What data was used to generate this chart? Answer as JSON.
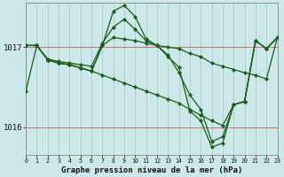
{
  "title": "Graphe pression niveau de la mer (hPa)",
  "bg_color": "#cce8e8",
  "grid_color": "#aacccc",
  "line_color": "#1a5c1a",
  "xlim": [
    0,
    23
  ],
  "ylim": [
    1015.65,
    1017.55
  ],
  "yticks": [
    1016.0,
    1017.0
  ],
  "figsize": [
    3.2,
    2.0
  ],
  "series": [
    [
      1016.45,
      1017.02,
      1016.85,
      1016.82,
      1016.8,
      1016.78,
      1016.76,
      1017.05,
      1017.25,
      1017.35,
      1017.22,
      1017.08,
      1017.02,
      1016.9,
      1016.68,
      1016.4,
      1016.22,
      1015.82,
      1015.88,
      1016.28,
      1016.32,
      1017.08,
      1016.98,
      1017.12
    ],
    [
      1017.02,
      1017.02,
      1016.84,
      1016.8,
      1016.78,
      1016.74,
      1016.7,
      1017.02,
      1017.12,
      1017.1,
      1017.08,
      1017.05,
      1017.02,
      1017.0,
      1016.98,
      1016.92,
      1016.88,
      1016.8,
      1016.76,
      1016.72,
      1016.68,
      1016.65,
      1016.6,
      1017.12
    ],
    [
      1017.02,
      1017.02,
      1016.84,
      1016.8,
      1016.78,
      1016.74,
      1016.7,
      1017.02,
      1017.45,
      1017.52,
      1017.38,
      1017.1,
      1017.02,
      1016.88,
      1016.75,
      1016.2,
      1016.08,
      1015.75,
      1015.8,
      1016.28,
      1016.32,
      1017.08,
      1016.98,
      1017.12
    ],
    [
      1017.02,
      1017.02,
      1016.84,
      1016.8,
      1016.78,
      1016.74,
      1016.7,
      1016.65,
      1016.6,
      1016.55,
      1016.5,
      1016.45,
      1016.4,
      1016.35,
      1016.3,
      1016.22,
      1016.15,
      1016.08,
      1016.02,
      1016.28,
      1016.32,
      1017.08,
      1016.98,
      1017.12
    ]
  ]
}
